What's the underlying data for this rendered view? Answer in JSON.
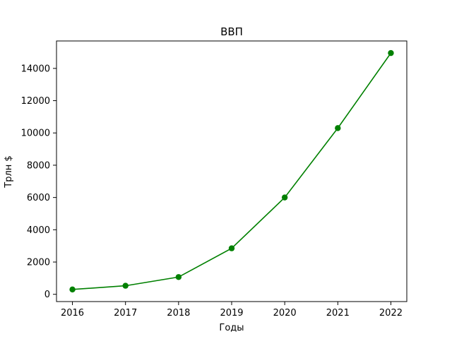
{
  "chart_data": {
    "type": "line",
    "title": "ВВП",
    "xlabel": "Годы",
    "ylabel": "Трлн $",
    "x": [
      2016,
      2017,
      2018,
      2019,
      2020,
      2021,
      2022
    ],
    "series": [
      {
        "values": [
          300,
          530,
          1070,
          2850,
          6000,
          10300,
          14950
        ],
        "color": "#008000",
        "marker": "circle"
      }
    ],
    "xticks": [
      "2016",
      "2017",
      "2018",
      "2019",
      "2020",
      "2021",
      "2022"
    ],
    "yticks": [
      "0",
      "2000",
      "4000",
      "6000",
      "8000",
      "10000",
      "12000",
      "14000"
    ],
    "ylim": [
      -450,
      15700
    ],
    "xlim": [
      2015.7,
      2022.3
    ],
    "grid": false
  }
}
